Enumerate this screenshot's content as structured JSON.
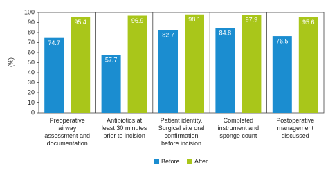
{
  "chart_data": {
    "type": "bar",
    "y_label": "(%)",
    "categories": [
      "Preoperative\nairway\nassessment and\ndocumentation",
      "Antibiotics at\nleast 30 minutes\nprior to incision",
      "Patient identity.\nSurgical site oral\nconfirmation\nbefore incision",
      "Completed\ninstrument and\nsponge count",
      "Postoperative\nmanagement\ndiscussed"
    ],
    "series": [
      {
        "name": "Before",
        "color": "#1b8dd0",
        "values": [
          74.7,
          57.7,
          82.7,
          84.8,
          76.5
        ]
      },
      {
        "name": "After",
        "color": "#a9c61a",
        "values": [
          95.4,
          96.9,
          98.1,
          97.9,
          95.6
        ]
      }
    ],
    "ylim": [
      0,
      100
    ],
    "yticks": [
      0,
      10,
      20,
      30,
      40,
      50,
      60,
      70,
      80,
      90,
      100
    ],
    "grid": false
  }
}
